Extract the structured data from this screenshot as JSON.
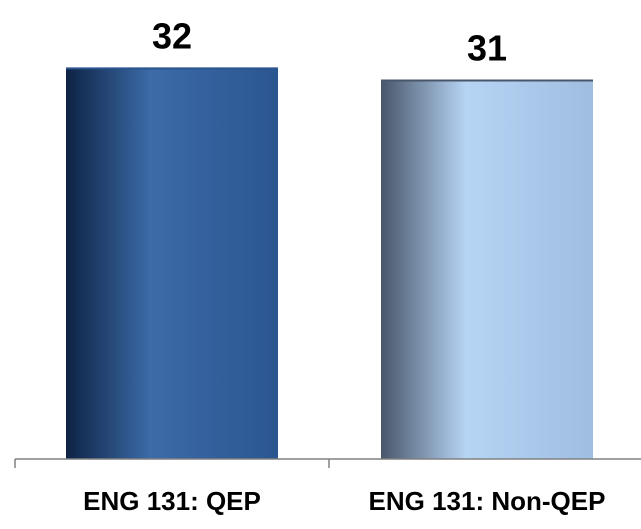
{
  "chart_data": {
    "type": "bar",
    "categories": [
      "ENG 131: QEP",
      "ENG 131: Non-QEP"
    ],
    "values": [
      32,
      31
    ],
    "data_labels": [
      "32",
      "31"
    ],
    "title": "",
    "xlabel": "",
    "ylabel": "",
    "ylim": [
      0,
      32.6
    ],
    "grid": false,
    "legend": "none",
    "colors": {
      "bar_1_dark": "#0e2345",
      "bar_1_mid": "#2a5590",
      "bar_1_light": "#3c6ba8",
      "bar_2_dark": "#48566a",
      "bar_2_mid": "#9fbde0",
      "bar_2_light": "#b6d4f4",
      "axis": "#808080"
    }
  }
}
